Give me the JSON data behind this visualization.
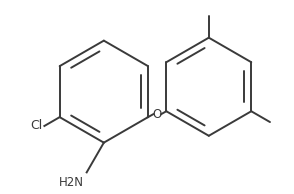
{
  "background_color": "#ffffff",
  "line_color": "#3a3a3a",
  "line_width": 1.4,
  "figsize": [
    2.94,
    1.94
  ],
  "dpi": 100,
  "cl_label": "Cl",
  "nh2_label": "H2N",
  "o_label": "O"
}
